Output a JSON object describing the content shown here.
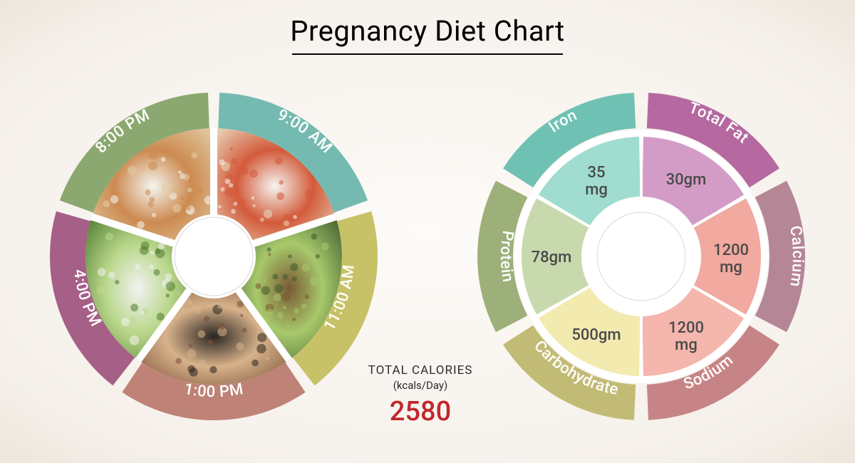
{
  "title": "Pregnancy Diet Chart",
  "background_colors": {
    "center": "#fdfbf8",
    "edge": "#ede6dc"
  },
  "calories": {
    "line1": "TOTAL CALORIES",
    "line2": "(kcals/Day)",
    "value": "2580",
    "value_color": "#c1272d"
  },
  "meal_wheel": {
    "type": "donut",
    "outer_r": 230,
    "ring_r": 180,
    "inner_r": 125,
    "hub_r": 55,
    "gap_deg": 4,
    "ring_fill": "#f5f1eb",
    "spoke_color": "#ffffff",
    "hub_fill": "#ffffff",
    "hub_stroke": "#d8d8d8",
    "start_angle": -90,
    "segments": [
      {
        "label": "9:00 AM",
        "color": "#75bab0",
        "food_colors": [
          "#e8dbc0",
          "#d35a3a",
          "#f5f5f0"
        ]
      },
      {
        "label": "11:00 AM",
        "color": "#c7c268",
        "food_colors": [
          "#3f5a2e",
          "#a7c96b",
          "#7a5a34"
        ]
      },
      {
        "label": "1:00 PM",
        "color": "#bf8276",
        "food_colors": [
          "#7a5038",
          "#d7b28a",
          "#2a2622"
        ]
      },
      {
        "label": "4:00 PM",
        "color": "#a65f86",
        "food_colors": [
          "#4f7a2e",
          "#b9d78a",
          "#f2f2f2"
        ]
      },
      {
        "label": "8:00 PM",
        "color": "#8aa86f",
        "food_colors": [
          "#e2cda6",
          "#cc8a50",
          "#f5f5f0"
        ]
      }
    ]
  },
  "nutrient_wheel": {
    "type": "donut",
    "outer_r": 230,
    "ring_r": 180,
    "inner_r": 84,
    "hub_r": 62,
    "gap_deg": 5,
    "hub_fill": "#ffffff",
    "hub_stroke": "#d8d8d8",
    "white_ring_fill": "#ffffff",
    "start_angle": -90,
    "segments": [
      {
        "label": "Total Fat",
        "outer_color": "#b569a0",
        "inner_color": "#d39cc6",
        "value": "30gm"
      },
      {
        "label": "Calcium",
        "outer_color": "#b58696",
        "inner_color": "#f1a9a0",
        "value": "1200 mg"
      },
      {
        "label": "Sodium",
        "outer_color": "#c78486",
        "inner_color": "#f4b6ad",
        "value": "1200 mg"
      },
      {
        "label": "Carbohydrate",
        "outer_color": "#c2bb76",
        "inner_color": "#f3eab0",
        "value": "500gm"
      },
      {
        "label": "Protein",
        "outer_color": "#9db07a",
        "inner_color": "#c9d9ae",
        "value": "78gm"
      },
      {
        "label": "Iron",
        "outer_color": "#6fc2b3",
        "inner_color": "#a0dccf",
        "value": "35 mg"
      }
    ]
  }
}
